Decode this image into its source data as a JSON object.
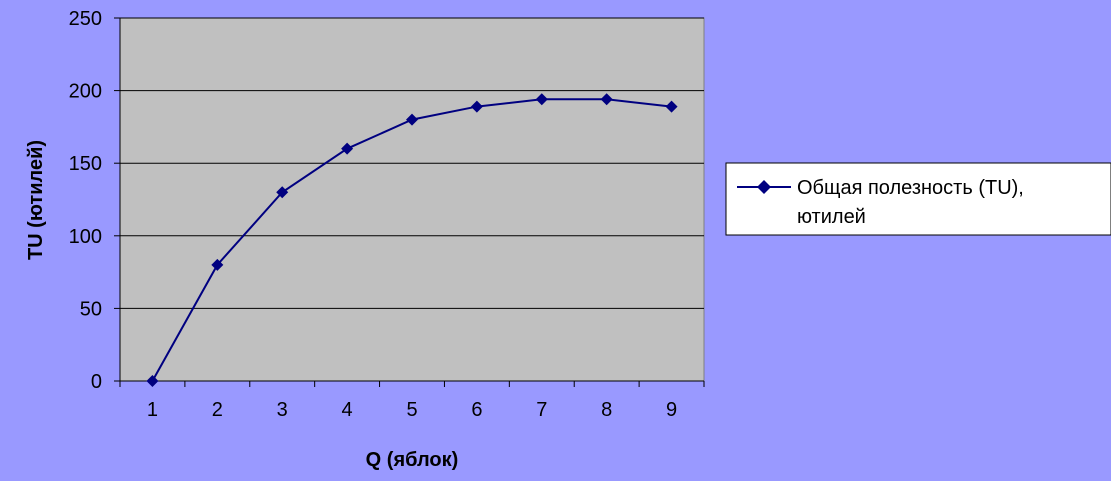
{
  "colors": {
    "background": "#9999FF",
    "plot_area": "#C0C0C0",
    "series": "#000080",
    "gridline": "#000000",
    "legend_bg": "#FFFFFF"
  },
  "chart_data": {
    "type": "line",
    "categories": [
      "1",
      "2",
      "3",
      "4",
      "5",
      "6",
      "7",
      "8",
      "9"
    ],
    "series": [
      {
        "name": "Общая полезность (TU), ютилей",
        "values": [
          0,
          80,
          130,
          160,
          180,
          189,
          194,
          194,
          189
        ]
      }
    ],
    "xlabel": "Q (яблок)",
    "ylabel": "TU (ютилей)",
    "ylim": [
      0,
      250
    ],
    "yticks": [
      0,
      50,
      100,
      150,
      200,
      250
    ],
    "grid": true,
    "legend": {
      "position": "right",
      "lines": [
        "Общая полезность (TU),",
        "ютилей"
      ]
    },
    "marker": "diamond"
  }
}
